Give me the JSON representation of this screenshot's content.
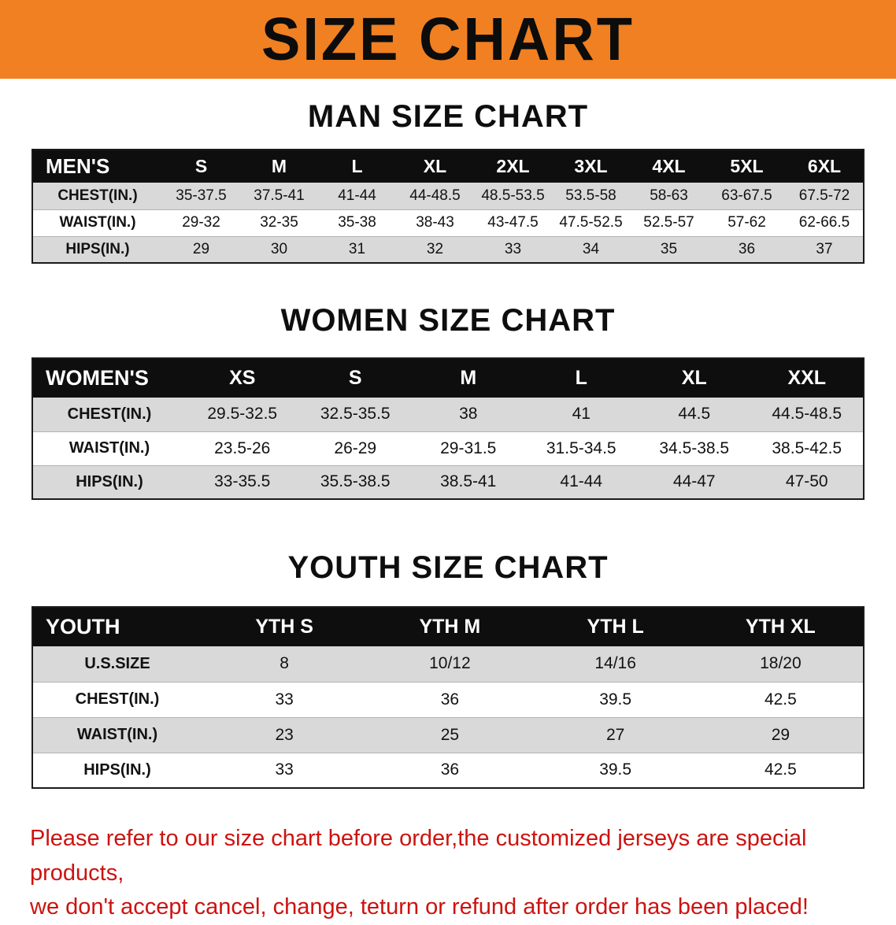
{
  "banner": {
    "title": "SIZE CHART"
  },
  "colors": {
    "banner_bg": "#f08021",
    "table_header_bg": "#0e0e0e",
    "row_stripe": "#d9d9d9",
    "disclaimer_text": "#cc1310"
  },
  "sections": {
    "men": {
      "title": "MAN SIZE CHART",
      "table": {
        "corner": "MEN'S",
        "columns": [
          "S",
          "M",
          "L",
          "XL",
          "2XL",
          "3XL",
          "4XL",
          "5XL",
          "6XL"
        ],
        "rows": [
          {
            "label": "CHEST(IN.)",
            "values": [
              "35-37.5",
              "37.5-41",
              "41-44",
              "44-48.5",
              "48.5-53.5",
              "53.5-58",
              "58-63",
              "63-67.5",
              "67.5-72"
            ]
          },
          {
            "label": "WAIST(IN.)",
            "values": [
              "29-32",
              "32-35",
              "35-38",
              "38-43",
              "43-47.5",
              "47.5-52.5",
              "52.5-57",
              "57-62",
              "62-66.5"
            ]
          },
          {
            "label": "HIPS(IN.)",
            "values": [
              "29",
              "30",
              "31",
              "32",
              "33",
              "34",
              "35",
              "36",
              "37"
            ]
          }
        ]
      }
    },
    "women": {
      "title": "WOMEN SIZE CHART",
      "table": {
        "corner": "WOMEN'S",
        "columns": [
          "XS",
          "S",
          "M",
          "L",
          "XL",
          "XXL"
        ],
        "rows": [
          {
            "label": "CHEST(IN.)",
            "values": [
              "29.5-32.5",
              "32.5-35.5",
              "38",
              "41",
              "44.5",
              "44.5-48.5"
            ]
          },
          {
            "label": "WAIST(IN.)",
            "values": [
              "23.5-26",
              "26-29",
              "29-31.5",
              "31.5-34.5",
              "34.5-38.5",
              "38.5-42.5"
            ]
          },
          {
            "label": "HIPS(IN.)",
            "values": [
              "33-35.5",
              "35.5-38.5",
              "38.5-41",
              "41-44",
              "44-47",
              "47-50"
            ]
          }
        ]
      }
    },
    "youth": {
      "title": "YOUTH SIZE CHART",
      "table": {
        "corner": "YOUTH",
        "columns": [
          "YTH S",
          "YTH M",
          "YTH L",
          "YTH XL"
        ],
        "rows": [
          {
            "label": "U.S.SIZE",
            "values": [
              "8",
              "10/12",
              "14/16",
              "18/20"
            ]
          },
          {
            "label": "CHEST(IN.)",
            "values": [
              "33",
              "36",
              "39.5",
              "42.5"
            ]
          },
          {
            "label": "WAIST(IN.)",
            "values": [
              "23",
              "25",
              "27",
              "29"
            ]
          },
          {
            "label": "HIPS(IN.)",
            "values": [
              "33",
              "36",
              "39.5",
              "42.5"
            ]
          }
        ]
      }
    }
  },
  "disclaimer": {
    "line1": "Please refer to our size chart before order,the customized jerseys are special products,",
    "line2": "we don't accept cancel, change, teturn or refund after order has been placed!"
  }
}
